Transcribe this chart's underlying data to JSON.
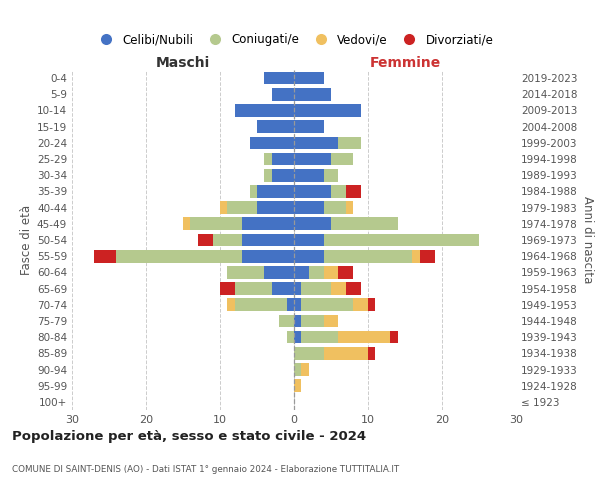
{
  "age_groups": [
    "100+",
    "95-99",
    "90-94",
    "85-89",
    "80-84",
    "75-79",
    "70-74",
    "65-69",
    "60-64",
    "55-59",
    "50-54",
    "45-49",
    "40-44",
    "35-39",
    "30-34",
    "25-29",
    "20-24",
    "15-19",
    "10-14",
    "5-9",
    "0-4"
  ],
  "birth_years": [
    "≤ 1923",
    "1924-1928",
    "1929-1933",
    "1934-1938",
    "1939-1943",
    "1944-1948",
    "1949-1953",
    "1954-1958",
    "1959-1963",
    "1964-1968",
    "1969-1973",
    "1974-1978",
    "1979-1983",
    "1984-1988",
    "1989-1993",
    "1994-1998",
    "1999-2003",
    "2004-2008",
    "2009-2013",
    "2014-2018",
    "2019-2023"
  ],
  "colors": {
    "celibi": "#4472c4",
    "coniugati": "#b5c98e",
    "vedovi": "#f0c060",
    "divorziati": "#cc2222"
  },
  "maschi": {
    "celibi": [
      0,
      0,
      0,
      0,
      0,
      0,
      1,
      3,
      4,
      7,
      7,
      7,
      5,
      5,
      3,
      3,
      6,
      5,
      8,
      3,
      4
    ],
    "coniugati": [
      0,
      0,
      0,
      0,
      1,
      2,
      7,
      5,
      5,
      17,
      4,
      7,
      4,
      1,
      1,
      1,
      0,
      0,
      0,
      0,
      0
    ],
    "vedovi": [
      0,
      0,
      0,
      0,
      0,
      0,
      1,
      0,
      0,
      0,
      0,
      1,
      1,
      0,
      0,
      0,
      0,
      0,
      0,
      0,
      0
    ],
    "divorziati": [
      0,
      0,
      0,
      0,
      0,
      0,
      0,
      2,
      0,
      3,
      2,
      0,
      0,
      0,
      0,
      0,
      0,
      0,
      0,
      0,
      0
    ]
  },
  "femmine": {
    "celibi": [
      0,
      0,
      0,
      0,
      1,
      1,
      1,
      1,
      2,
      4,
      4,
      5,
      4,
      5,
      4,
      5,
      6,
      4,
      9,
      5,
      4
    ],
    "coniugati": [
      0,
      0,
      1,
      4,
      5,
      3,
      7,
      4,
      2,
      12,
      21,
      9,
      3,
      2,
      2,
      3,
      3,
      0,
      0,
      0,
      0
    ],
    "vedovi": [
      0,
      1,
      1,
      6,
      7,
      2,
      2,
      2,
      2,
      1,
      0,
      0,
      1,
      0,
      0,
      0,
      0,
      0,
      0,
      0,
      0
    ],
    "divorziati": [
      0,
      0,
      0,
      1,
      1,
      0,
      1,
      2,
      2,
      2,
      0,
      0,
      0,
      2,
      0,
      0,
      0,
      0,
      0,
      0,
      0
    ]
  },
  "xlim": 30,
  "title": "Popolazione per età, sesso e stato civile - 2024",
  "subtitle": "COMUNE DI SAINT-DENIS (AO) - Dati ISTAT 1° gennaio 2024 - Elaborazione TUTTITALIA.IT",
  "ylabel_left": "Fasce di età",
  "ylabel_right": "Anni di nascita",
  "label_maschi": "Maschi",
  "label_femmine": "Femmine",
  "legend_labels": [
    "Celibi/Nubili",
    "Coniugati/e",
    "Vedovi/e",
    "Divorziati/e"
  ],
  "bg_color": "#ffffff",
  "grid_color": "#cccccc",
  "text_color": "#555555",
  "maschi_label_color": "#333333",
  "femmine_label_color": "#cc3333"
}
